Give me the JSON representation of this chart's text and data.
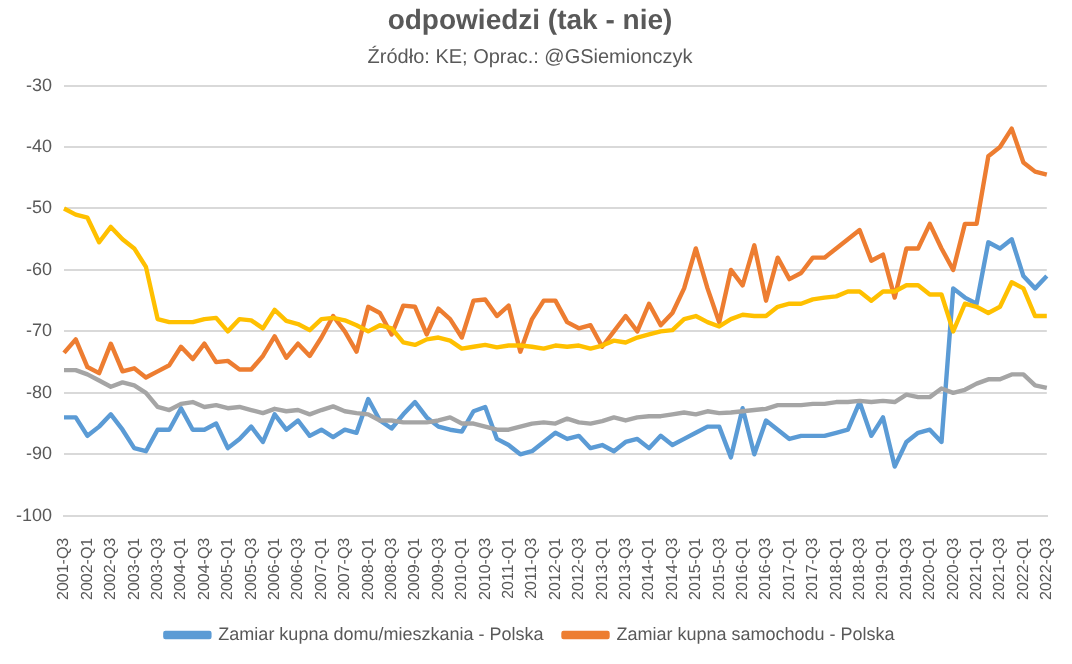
{
  "chart_data": {
    "type": "line",
    "title": "odpowiedzi (tak - nie)",
    "subtitle": "Źródło: KE; Oprac.: @GSiemionczyk",
    "categories": [
      "2001-Q3",
      null,
      "2002-Q1",
      null,
      "2002-Q3",
      null,
      "2003-Q1",
      null,
      "2003-Q3",
      null,
      "2004-Q1",
      null,
      "2004-Q3",
      null,
      "2005-Q1",
      null,
      "2005-Q3",
      null,
      "2006-Q1",
      null,
      "2006-Q3",
      null,
      "2007-Q1",
      null,
      "2007-Q3",
      null,
      "2008-Q1",
      null,
      "2008-Q3",
      null,
      "2009-Q1",
      null,
      "2009-Q3",
      null,
      "2010-Q1",
      null,
      "2010-Q3",
      null,
      "2011-Q1",
      null,
      "2011-Q3",
      null,
      "2012-Q1",
      null,
      "2012-Q3",
      null,
      "2013-Q1",
      null,
      "2013-Q3",
      null,
      "2014-Q1",
      null,
      "2014-Q3",
      null,
      "2015-Q1",
      null,
      "2015-Q3",
      null,
      "2016-Q1",
      null,
      "2016-Q3",
      null,
      "2017-Q1",
      null,
      "2017-Q3",
      null,
      "2018-Q1",
      null,
      "2018-Q3",
      null,
      "2019-Q1",
      null,
      "2019-Q3",
      null,
      "2020-Q1",
      null,
      "2020-Q3",
      null,
      "2021-Q1",
      null,
      "2021-Q3",
      null,
      "2022-Q1",
      null,
      "2022-Q3"
    ],
    "series": [
      {
        "color": "#ffc000",
        "values": [
          -50,
          -51,
          -51.5,
          -55.5,
          -53,
          -55,
          -56.5,
          -59.5,
          -68,
          -68.5,
          -68.5,
          -68.5,
          -68,
          -67.8,
          -70,
          -68,
          -68.2,
          -69.5,
          -66.5,
          -68.3,
          -68.8,
          -69.8,
          -68,
          -67.8,
          -68.2,
          -69,
          -70,
          -69,
          -69.5,
          -71.8,
          -72.2,
          -71.3,
          -71,
          -71.5,
          -72.8,
          -72.5,
          -72.2,
          -72.6,
          -72.3,
          -72.3,
          -72.5,
          -72.8,
          -72.3,
          -72.5,
          -72.3,
          -72.8,
          -72.3,
          -71.5,
          -71.8,
          -71,
          -70.5,
          -70,
          -69.8,
          -68,
          -67.5,
          -68.5,
          -69.2,
          -68,
          -67.3,
          -67.5,
          -67.5,
          -66,
          -65.5,
          -65.5,
          -64.8,
          -64.5,
          -64.3,
          -63.5,
          -63.5,
          -65,
          -63.5,
          -63.5,
          -62.5,
          -62.5,
          -64,
          -64,
          -70,
          -65.5,
          -66,
          -67,
          -66,
          -62,
          -63,
          -67.5,
          -67.5
        ]
      },
      {
        "color": "#a5a5a5",
        "values": [
          -76.3,
          -76.3,
          -77,
          -78,
          -79,
          -78.3,
          -78.8,
          -80,
          -82.3,
          -82.8,
          -81.8,
          -81.5,
          -82.3,
          -82,
          -82.5,
          -82.3,
          -82.8,
          -83.3,
          -82.6,
          -83,
          -82.8,
          -83.5,
          -82.8,
          -82.2,
          -83,
          -83.3,
          -83.5,
          -84.5,
          -84.5,
          -84.8,
          -84.8,
          -84.8,
          -84.5,
          -84,
          -85,
          -85,
          -85.5,
          -86,
          -86,
          -85.5,
          -85,
          -84.8,
          -85,
          -84.2,
          -84.8,
          -85,
          -84.6,
          -84,
          -84.5,
          -84,
          -83.8,
          -83.8,
          -83.5,
          -83.2,
          -83.5,
          -83,
          -83.3,
          -83.2,
          -83,
          -82.8,
          -82.6,
          -82,
          -82,
          -82,
          -81.8,
          -81.8,
          -81.5,
          -81.5,
          -81.3,
          -81.5,
          -81.3,
          -81.5,
          -80.3,
          -80.7,
          -80.7,
          -79.3,
          -80,
          -79.5,
          -78.5,
          -77.8,
          -77.8,
          -77,
          -77,
          -78.8,
          -79.2
        ]
      },
      {
        "name": "Zamiar kupna domu/mieszkania - Polska",
        "color": "#5b9bd5",
        "values": [
          -84,
          -84,
          -87,
          -85.5,
          -83.5,
          -86,
          -89,
          -89.5,
          -86,
          -86,
          -82.5,
          -86,
          -86,
          -85,
          -89,
          -87.5,
          -85.5,
          -88,
          -83.5,
          -86,
          -84.5,
          -87,
          -86,
          -87.2,
          -86,
          -86.5,
          -81,
          -84.5,
          -85.8,
          -83.5,
          -81.5,
          -84,
          -85.5,
          -86,
          -86.3,
          -83,
          -82.3,
          -87.5,
          -88.5,
          -90,
          -89.5,
          -88,
          -86.5,
          -87.5,
          -87,
          -89,
          -88.5,
          -89.5,
          -88,
          -87.5,
          -89,
          -87,
          -88.5,
          -87.5,
          -86.5,
          -85.5,
          -85.5,
          -90.5,
          -82.5,
          -90,
          -84.5,
          -86,
          -87.5,
          -87,
          -87,
          -87,
          -86.5,
          -86,
          -81.5,
          -87,
          -84,
          -92,
          -88,
          -86.5,
          -86,
          -88,
          -63,
          -64.5,
          -65.5,
          -55.5,
          -56.5,
          -55,
          -61,
          -63,
          -61
        ]
      },
      {
        "name": "Zamiar kupna samochodu - Polska",
        "color": "#ed7d31",
        "values": [
          -73.5,
          -71.3,
          -75.8,
          -76.8,
          -72,
          -76.5,
          -76,
          -77.5,
          -76.5,
          -75.5,
          -72.5,
          -74.5,
          -72,
          -75,
          -74.8,
          -76.2,
          -76.2,
          -74,
          -70.8,
          -74.3,
          -72,
          -74,
          -71,
          -67.5,
          -70,
          -73.3,
          -66,
          -67,
          -70.5,
          -65.8,
          -66,
          -70.5,
          -66.3,
          -68,
          -71,
          -65,
          -64.8,
          -67.5,
          -65.8,
          -73.3,
          -68,
          -65,
          -65,
          -68.5,
          -69.5,
          -69,
          -72.5,
          -70,
          -67.5,
          -70,
          -65.5,
          -69,
          -67,
          -63,
          -56.5,
          -63,
          -68.5,
          -60,
          -62.5,
          -56,
          -65,
          -58,
          -61.5,
          -60.5,
          -58,
          -58,
          -56.5,
          -55,
          -53.5,
          -58.5,
          -57.5,
          -64.5,
          -56.5,
          -56.5,
          -52.5,
          -56.5,
          -60,
          -52.5,
          -52.5,
          -41.5,
          -40,
          -37,
          -42.5,
          -44,
          -44.5
        ]
      }
    ],
    "ylim": [
      -100,
      -30
    ],
    "yticks": [
      -100,
      -90,
      -80,
      -70,
      -60,
      -50,
      -40,
      -30
    ],
    "grid": "y",
    "legend": "bottom",
    "marker": "none",
    "line_style": "solid"
  }
}
